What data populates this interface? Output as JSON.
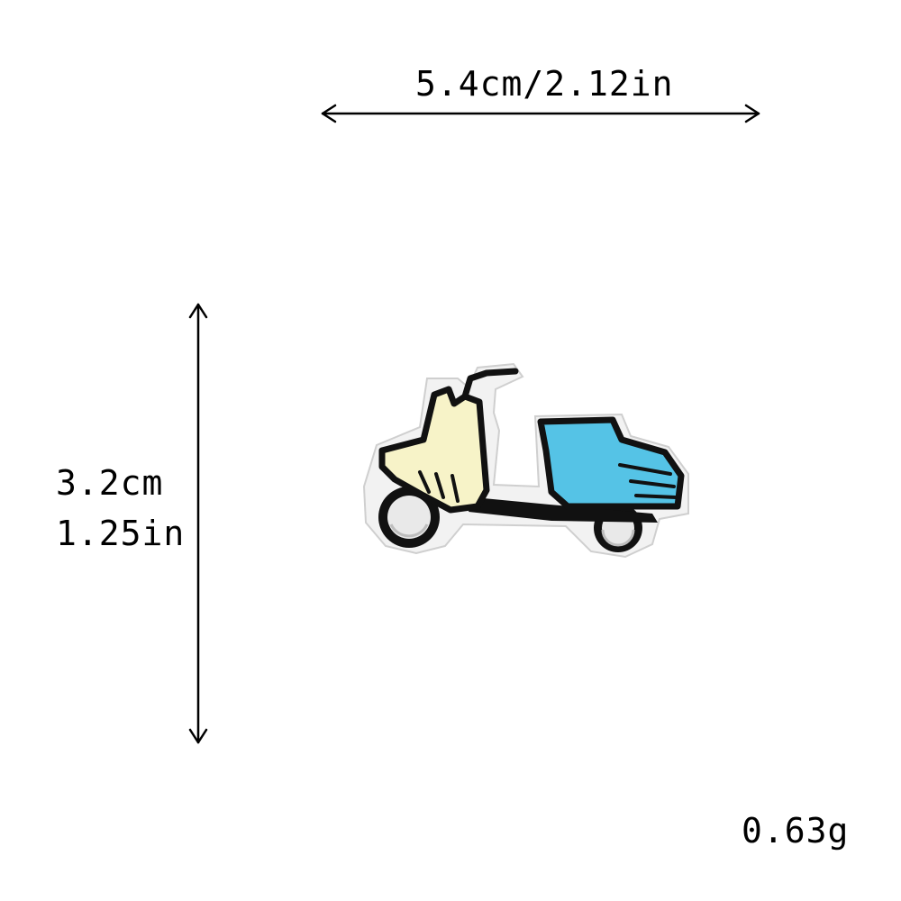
{
  "dimensions": {
    "width_label": "5.4cm/2.12in",
    "height_cm_label": "3.2cm",
    "height_in_label": "1.25in"
  },
  "weight_label": "0.63g",
  "product": {
    "icon": "scooter-patch-icon",
    "colors": {
      "border": "#111111",
      "backing": "#f2f2f2",
      "front_body": "#f7f3c8",
      "rear_body": "#55c3e6",
      "wheel_hub": "#e9e9e9"
    }
  }
}
